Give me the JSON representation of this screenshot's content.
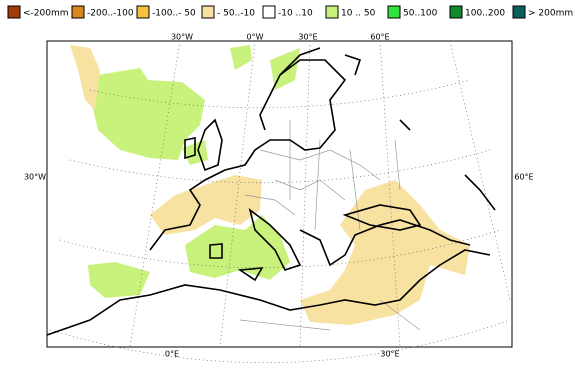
{
  "legend": [
    {
      "label": "<-200mm",
      "color": "#a33a0c"
    },
    {
      "label": "-200..-100",
      "color": "#d8861f"
    },
    {
      "label": "-100..- 50",
      "color": "#f6c13f"
    },
    {
      "label": "- 50..-10",
      "color": "#f8e2a2"
    },
    {
      "label": "-10 ..10",
      "color": "#ffffff"
    },
    {
      "label": "10 .. 50",
      "color": "#c8f27c"
    },
    {
      "label": "50..100",
      "color": "#2fe23c"
    },
    {
      "label": "100..200",
      "color": "#108a2d"
    },
    {
      "label": "> 200mm",
      "color": "#0b5e5b"
    }
  ],
  "map": {
    "top_labels": [
      "30°W",
      "0°W",
      "30°E",
      "60°E"
    ],
    "left_label": "30°W",
    "right_label": "60°E",
    "bottom_labels": [
      "0°E",
      "30°E"
    ]
  }
}
